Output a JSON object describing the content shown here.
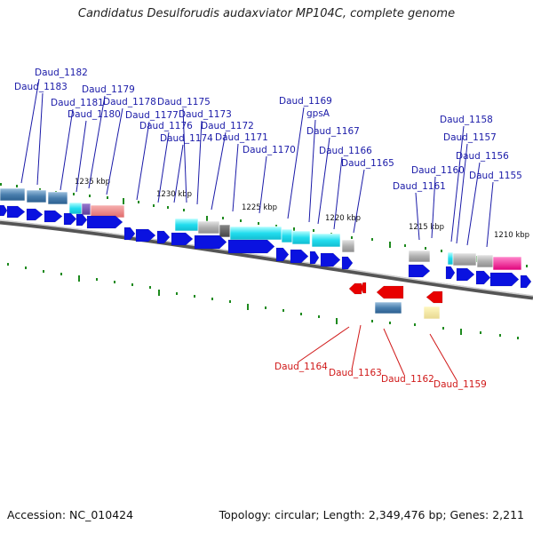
{
  "title": "Candidatus Desulforudis audaxviator MP104C, complete genome",
  "footer": {
    "accession": "Accession: NC_010424",
    "topology": "Topology: circular; Length: 2,349,476 bp; Genes: 2,211"
  },
  "colors": {
    "forward_label": "#1a1aa8",
    "reverse_label": "#d01818",
    "forward_gene": "#0a12e0",
    "reverse_gene": "#e80000",
    "backbone": "#777777",
    "tick": "#1e8a1e"
  },
  "kbp_ticks": [
    "1235 kbp",
    "1230 kbp",
    "1225 kbp",
    "1220 kbp",
    "1215 kbp",
    "1210 kbp"
  ],
  "forward_labels": [
    "Daud_1182",
    "Daud_1183",
    "Daud_1179",
    "Daud_1181",
    "Daud_1178",
    "Daud_1180",
    "Daud_1175",
    "Daud_1177",
    "Daud_1173",
    "Daud_1176",
    "Daud_1172",
    "Daud_1174",
    "Daud_1171",
    "Daud_1169",
    "gpsA",
    "Daud_1170",
    "Daud_1167",
    "Daud_1166",
    "Daud_1165",
    "Daud_1158",
    "Daud_1157",
    "Daud_1156",
    "Daud_1160",
    "Daud_1155",
    "Daud_1161"
  ],
  "reverse_labels": [
    "Daud_1164",
    "Daud_1163",
    "Daud_1162",
    "Daud_1159"
  ]
}
